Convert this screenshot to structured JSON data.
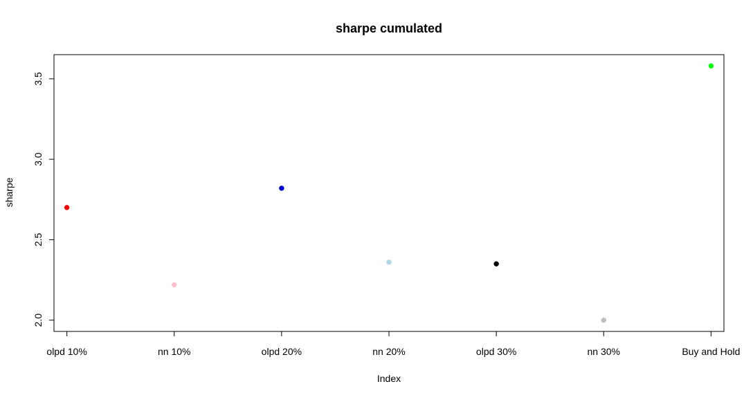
{
  "chart_data": {
    "type": "scatter",
    "title": "sharpe cumulated",
    "xlabel": "Index",
    "ylabel": "sharpe",
    "categories": [
      "olpd 10%",
      "nn 10%",
      "olpd 20%",
      "nn 20%",
      "olpd 30%",
      "nn 30%",
      "Buy and Hold"
    ],
    "x": [
      1,
      2,
      3,
      4,
      5,
      6,
      7
    ],
    "values": [
      2.7,
      2.22,
      2.82,
      2.36,
      2.35,
      2.0,
      3.58
    ],
    "point_colors": [
      "#ff0000",
      "#ffc0cb",
      "#0000cd",
      "#add8e6",
      "#000000",
      "#bebebe",
      "#00ff00"
    ],
    "xlim": [
      0.88,
      7.12
    ],
    "ylim": [
      1.93,
      3.65
    ],
    "y_ticks": [
      2.0,
      2.5,
      3.0,
      3.5
    ],
    "y_tick_labels": [
      "2.0",
      "2.5",
      "3.0",
      "3.5"
    ],
    "grid": false,
    "legend": "none"
  }
}
